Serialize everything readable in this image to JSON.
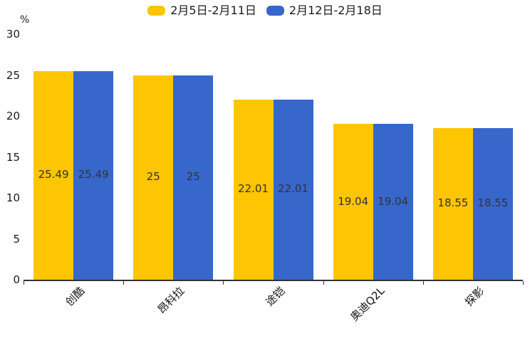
{
  "chart_data": {
    "type": "bar",
    "unit_label": "%",
    "categories": [
      "创酷",
      "昂科拉",
      "途铠",
      "奥迪Q2L",
      "探影"
    ],
    "series": [
      {
        "name": "2月5日-2月11日",
        "color": "#FDC502",
        "values": [
          25.49,
          25,
          22.01,
          19.04,
          18.55
        ],
        "value_labels": [
          "25.49",
          "25",
          "22.01",
          "19.04",
          "18.55"
        ]
      },
      {
        "name": "2月12日-2月18日",
        "color": "#3767CB",
        "values": [
          25.49,
          25,
          22.01,
          19.04,
          18.55
        ],
        "value_labels": [
          "25.49",
          "25",
          "22.01",
          "19.04",
          "18.55"
        ]
      }
    ],
    "y_ticks": [
      0,
      5,
      10,
      15,
      20,
      25,
      30
    ],
    "ylim": [
      0,
      30
    ],
    "grid": false,
    "legend_position": "top",
    "value_label_color": "#333333",
    "axis_color": "#333333"
  }
}
